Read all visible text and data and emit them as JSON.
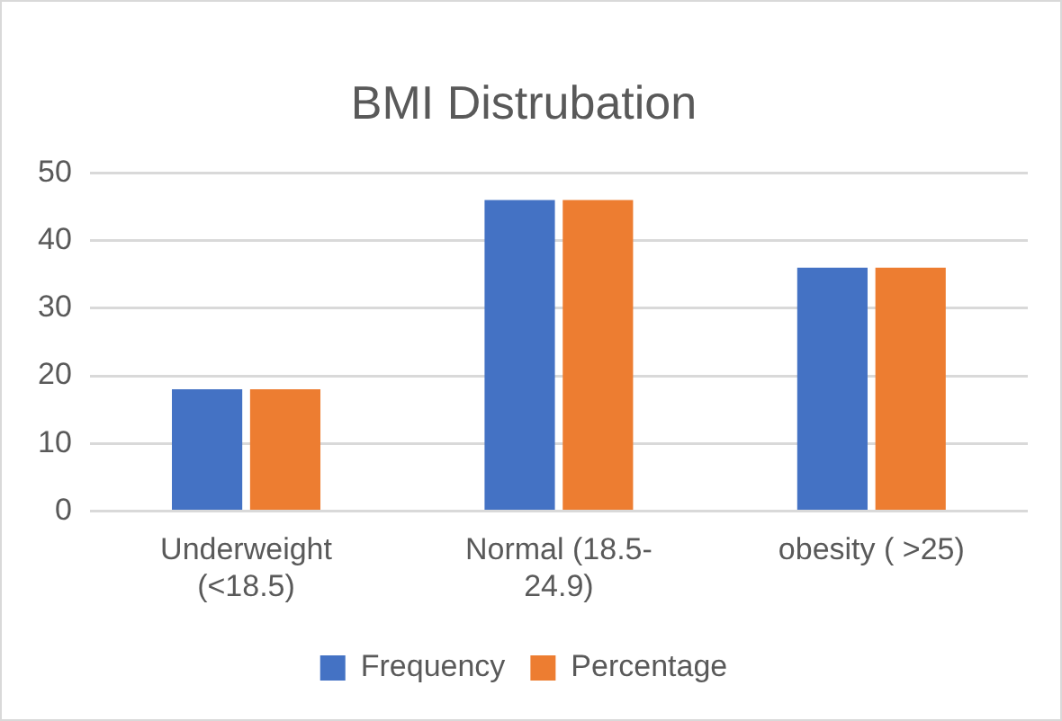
{
  "chart_data": {
    "type": "bar",
    "title": "BMI Distrubation",
    "categories": [
      "Underweight (<18.5)",
      "Normal (18.5-24.9)",
      "obesity ( >25)"
    ],
    "series": [
      {
        "name": "Frequency",
        "color": "#4472c4",
        "values": [
          18,
          46,
          36
        ]
      },
      {
        "name": "Percentage",
        "color": "#ed7d31",
        "values": [
          18,
          46,
          36
        ]
      }
    ],
    "ylim": [
      0,
      50
    ],
    "yticks": [
      0,
      10,
      20,
      30,
      40,
      50
    ],
    "grid": "y",
    "legend": "bottom"
  }
}
